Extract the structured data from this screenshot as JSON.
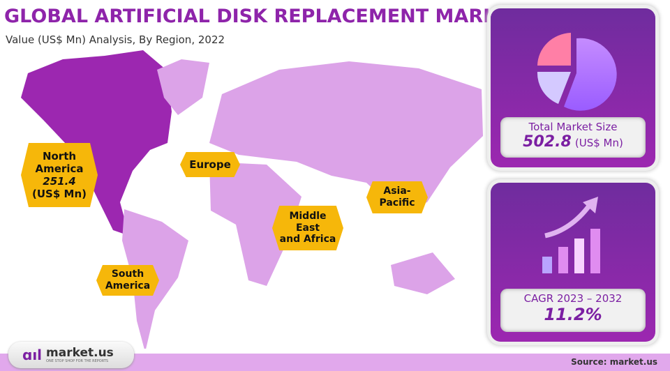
{
  "header": {
    "title": "GLOBAL ARTIFICIAL DISK REPLACEMENT MARKET",
    "subtitle": "Value (US$ Mn) Analysis, By Region, 2022"
  },
  "regions": [
    {
      "name": "North America",
      "value": "251.4",
      "unit": "(US$ Mn)",
      "highlight": true
    },
    {
      "name": "Europe"
    },
    {
      "name": "Asia-Pacific"
    },
    {
      "name": "Middle East and Africa"
    },
    {
      "name": "South America"
    }
  ],
  "region_labels": {
    "na1": "North",
    "na2": "America",
    "eu": "Europe",
    "ap1": "Asia-",
    "ap2": "Pacific",
    "mea1": "Middle",
    "mea2": "East",
    "mea3": "and Africa",
    "sa1": "South",
    "sa2": "America"
  },
  "market_size": {
    "label": "Total Market Size",
    "value": "502.8",
    "unit": "(US$ Mn)",
    "icon": "pie-chart-icon"
  },
  "cagr": {
    "label": "CAGR 2023 – 2032",
    "value": "11.2%",
    "icon": "growth-bar-chart-icon"
  },
  "footer": {
    "logo_text": "market.us",
    "tagline": "ONE STOP SHOP FOR THE REPORTS",
    "source": "Source: market.us"
  },
  "colors": {
    "accent": "#8e24aa",
    "highlight_region": "#9c27b0",
    "other_region": "#dca3e8",
    "label_bg": "#f6b70a",
    "footer": "#e1a8ec"
  }
}
